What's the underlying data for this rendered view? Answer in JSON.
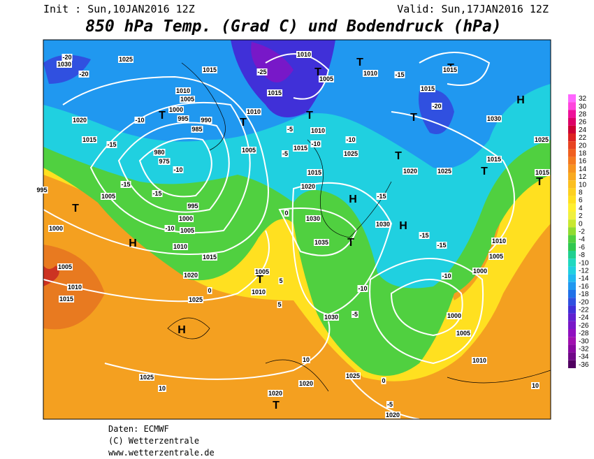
{
  "header": {
    "init": "Init : Sun,10JAN2016 12Z",
    "valid": "Valid: Sun,17JAN2016 12Z",
    "title": "850 hPa Temp. (Grad C) und Bodendruck (hPa)"
  },
  "legend": {
    "values": [
      32,
      30,
      28,
      26,
      24,
      22,
      20,
      18,
      16,
      14,
      12,
      10,
      8,
      6,
      4,
      2,
      0,
      -2,
      -4,
      -6,
      -8,
      -10,
      -12,
      -14,
      -16,
      -18,
      -20,
      -22,
      -24,
      -26,
      -28,
      -30,
      -32,
      -34,
      -36
    ],
    "colors": [
      "#ff66ff",
      "#ff44dd",
      "#ee1199",
      "#dd0066",
      "#cc0033",
      "#dd2222",
      "#e84422",
      "#f06020",
      "#f47a20",
      "#f79420",
      "#f9aa20",
      "#fbbf20",
      "#fdd020",
      "#ffe020",
      "#fff030",
      "#f0f040",
      "#c8e830",
      "#90dc30",
      "#50d040",
      "#30c850",
      "#20d090",
      "#20d8c0",
      "#20d0e0",
      "#20b8f0",
      "#2098f0",
      "#2070e8",
      "#3050e0",
      "#4030d8",
      "#6020d0",
      "#7818c8",
      "#9010c0",
      "#a010b0",
      "#8808a0",
      "#700888",
      "#500060"
    ]
  },
  "map": {
    "centers": [
      "H",
      "H",
      "H",
      "H",
      "H",
      "T",
      "T",
      "T",
      "T",
      "T",
      "T",
      "T",
      "T",
      "T",
      "T",
      "T",
      "T",
      "T",
      "T"
    ],
    "labels": [
      "1025",
      "1030",
      "-20",
      "-20",
      "1015",
      "-25",
      "1010",
      "1005",
      "1010",
      "-15",
      "1015",
      "1015",
      "-20",
      "1010",
      "1005",
      "1000",
      "995",
      "990",
      "985",
      "980",
      "975",
      "-10",
      "-10",
      "-15",
      "1015",
      "1020",
      "-15",
      "-15",
      "995",
      "1005",
      "995",
      "1000",
      "-10",
      "1005",
      "1010",
      "1015",
      "1020",
      "1025",
      "1000",
      "1005",
      "1010",
      "1015",
      "1005",
      "1010",
      "1030",
      "1035",
      "1020",
      "1015",
      "1005",
      "1015",
      "1010",
      "1015",
      "1010",
      "1025",
      "1020",
      "1025",
      "1015",
      "1030",
      "1030",
      "1030",
      "1025",
      "1020",
      "1025",
      "1020",
      "1020",
      "1010",
      "1005",
      "1000",
      "1000",
      "1005",
      "1010",
      "1025",
      "1015",
      "-10",
      "-5",
      "-10",
      "-15",
      "-15",
      "-5",
      "-5",
      "-10",
      "-15",
      "-10",
      "0",
      "0",
      "0",
      "5",
      "5",
      "10",
      "10",
      "10",
      "-5"
    ]
  },
  "footer": {
    "line1": "Daten: ECMWF",
    "line2": "(C) Wetterzentrale",
    "line3": "www.wetterzentrale.de"
  }
}
